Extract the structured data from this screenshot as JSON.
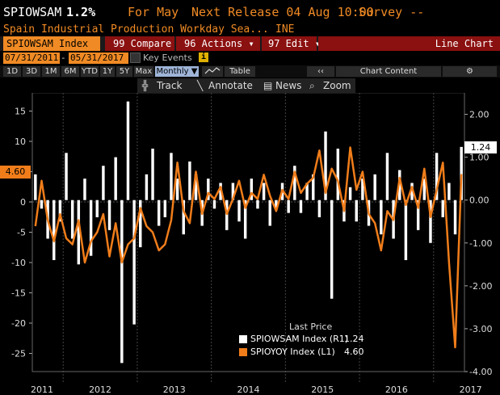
{
  "header": {
    "ticker": "SPIOWSAM",
    "value": "1.2%",
    "period_label": "For May",
    "next_release_label": "Next Release 04 Aug 10:00",
    "survey_label": "Survey --",
    "description": "Spain Industrial Production Workday Sea...",
    "source": "INE"
  },
  "toolbar": {
    "security": "SPIOWSAM Index",
    "compare": "99 Compare",
    "actions": "96 Actions ▾",
    "edit": "97 Edit ▾",
    "chart_type": "Line Chart"
  },
  "dates": {
    "start": "07/31/2011",
    "separator": "-",
    "end": "05/31/2017",
    "key_events": "Key Events"
  },
  "periods": [
    "1D",
    "3D",
    "1M",
    "6M",
    "YTD",
    "1Y",
    "5Y",
    "Max"
  ],
  "frequency": "Monthly ▼",
  "table_label": "Table",
  "chart_content_label": "Chart Content",
  "tools": {
    "track": "Track",
    "annotate": "Annotate",
    "news": "News",
    "zoom": "Zoom"
  },
  "legend": {
    "title": "Last Price",
    "series": [
      {
        "name": "SPIOWSAM Index  (R1)",
        "value": "1.24",
        "color": "#ffffff"
      },
      {
        "name": "SPIOYOY Index  (L1)",
        "value": "4.60",
        "color": "#f07d1a"
      }
    ]
  },
  "colors": {
    "accent": "#f08a24",
    "line": "#f07d1a",
    "bar": "#ffffff"
  },
  "chart_data": {
    "type": "bar",
    "x": [
      "2011-08",
      "2011-09",
      "2011-10",
      "2011-11",
      "2011-12",
      "2012-01",
      "2012-02",
      "2012-03",
      "2012-04",
      "2012-05",
      "2012-06",
      "2012-07",
      "2012-08",
      "2012-09",
      "2012-10",
      "2012-11",
      "2012-12",
      "2013-01",
      "2013-02",
      "2013-03",
      "2013-04",
      "2013-05",
      "2013-06",
      "2013-07",
      "2013-08",
      "2013-09",
      "2013-10",
      "2013-11",
      "2013-12",
      "2014-01",
      "2014-02",
      "2014-03",
      "2014-04",
      "2014-05",
      "2014-06",
      "2014-07",
      "2014-08",
      "2014-09",
      "2014-10",
      "2014-11",
      "2014-12",
      "2015-01",
      "2015-02",
      "2015-03",
      "2015-04",
      "2015-05",
      "2015-06",
      "2015-07",
      "2015-08",
      "2015-09",
      "2015-10",
      "2015-11",
      "2015-12",
      "2016-01",
      "2016-02",
      "2016-03",
      "2016-04",
      "2016-05",
      "2016-06",
      "2016-07",
      "2016-08",
      "2016-09",
      "2016-10",
      "2016-11",
      "2016-12",
      "2017-01",
      "2017-02",
      "2017-03",
      "2017-04",
      "2017-05"
    ],
    "x_labels": [
      "2011",
      "2012",
      "2013",
      "2014",
      "2015",
      "2016",
      "2017"
    ],
    "series": [
      {
        "name": "SPIOWSAM Index  (R1)",
        "axis": "right",
        "kind": "bar",
        "values": [
          0.6,
          -0.2,
          -0.9,
          -1.4,
          -0.5,
          1.1,
          -0.9,
          -1.5,
          0.5,
          -1.3,
          -0.4,
          0.8,
          -0.7,
          1.0,
          -3.8,
          2.3,
          -2.9,
          -1.1,
          0.6,
          1.2,
          -0.6,
          -0.4,
          1.1,
          0.5,
          -0.8,
          0.9,
          0.6,
          -0.6,
          0.5,
          -0.2,
          0.4,
          -0.7,
          0.4,
          -0.5,
          -0.9,
          0.5,
          -0.2,
          0.4,
          -0.6,
          -0.2,
          0.4,
          -0.3,
          0.8,
          -0.3,
          0.4,
          0.6,
          -0.4,
          1.6,
          -2.3,
          1.2,
          -0.5,
          0.3,
          -0.5,
          0.5,
          -0.6,
          0.6,
          -0.8,
          1.1,
          -0.9,
          0.7,
          -1.4,
          0.4,
          -0.7,
          0.5,
          -1.0,
          1.1,
          -0.4,
          0.4,
          -0.8,
          1.24
        ]
      },
      {
        "name": "SPIOYOY Index  (L1)",
        "axis": "left",
        "kind": "line",
        "values": [
          -4.0,
          3.5,
          -3.0,
          -6.5,
          -2.0,
          -6.0,
          -7.0,
          -3.0,
          -10.0,
          -6.5,
          -5.0,
          -2.0,
          -9.0,
          -3.5,
          -10.0,
          -7.0,
          -6.0,
          -1.0,
          -4.0,
          -5.0,
          -8.0,
          -7.0,
          -3.0,
          6.5,
          -1.5,
          -3.5,
          5.0,
          -2.0,
          1.5,
          0.5,
          2.5,
          -2.0,
          0.5,
          3.5,
          -1.0,
          1.5,
          0.5,
          4.5,
          1.0,
          -1.5,
          2.0,
          0.5,
          5.0,
          1.5,
          3.0,
          4.0,
          8.5,
          1.5,
          5.5,
          3.5,
          -1.5,
          9.0,
          2.0,
          5.0,
          -2.0,
          -3.5,
          -8.0,
          -1.5,
          -3.0,
          4.0,
          -0.5,
          2.5,
          -1.0,
          5.5,
          -2.5,
          2.0,
          6.5,
          -10.0,
          -24.0,
          4.6
        ]
      }
    ],
    "left_axis": {
      "ticks": [
        15,
        10,
        5,
        0,
        -5,
        -10,
        -15,
        -20,
        -25
      ],
      "min": -28,
      "max": 18
    },
    "right_axis": {
      "ticks": [
        "2.00",
        "1.00",
        "0.00",
        "-1.00",
        "-2.00",
        "-3.00",
        "-4.00"
      ],
      "min": -4,
      "max": 2.5
    },
    "left_last_value": "4.60",
    "right_last_value": "1.24"
  }
}
